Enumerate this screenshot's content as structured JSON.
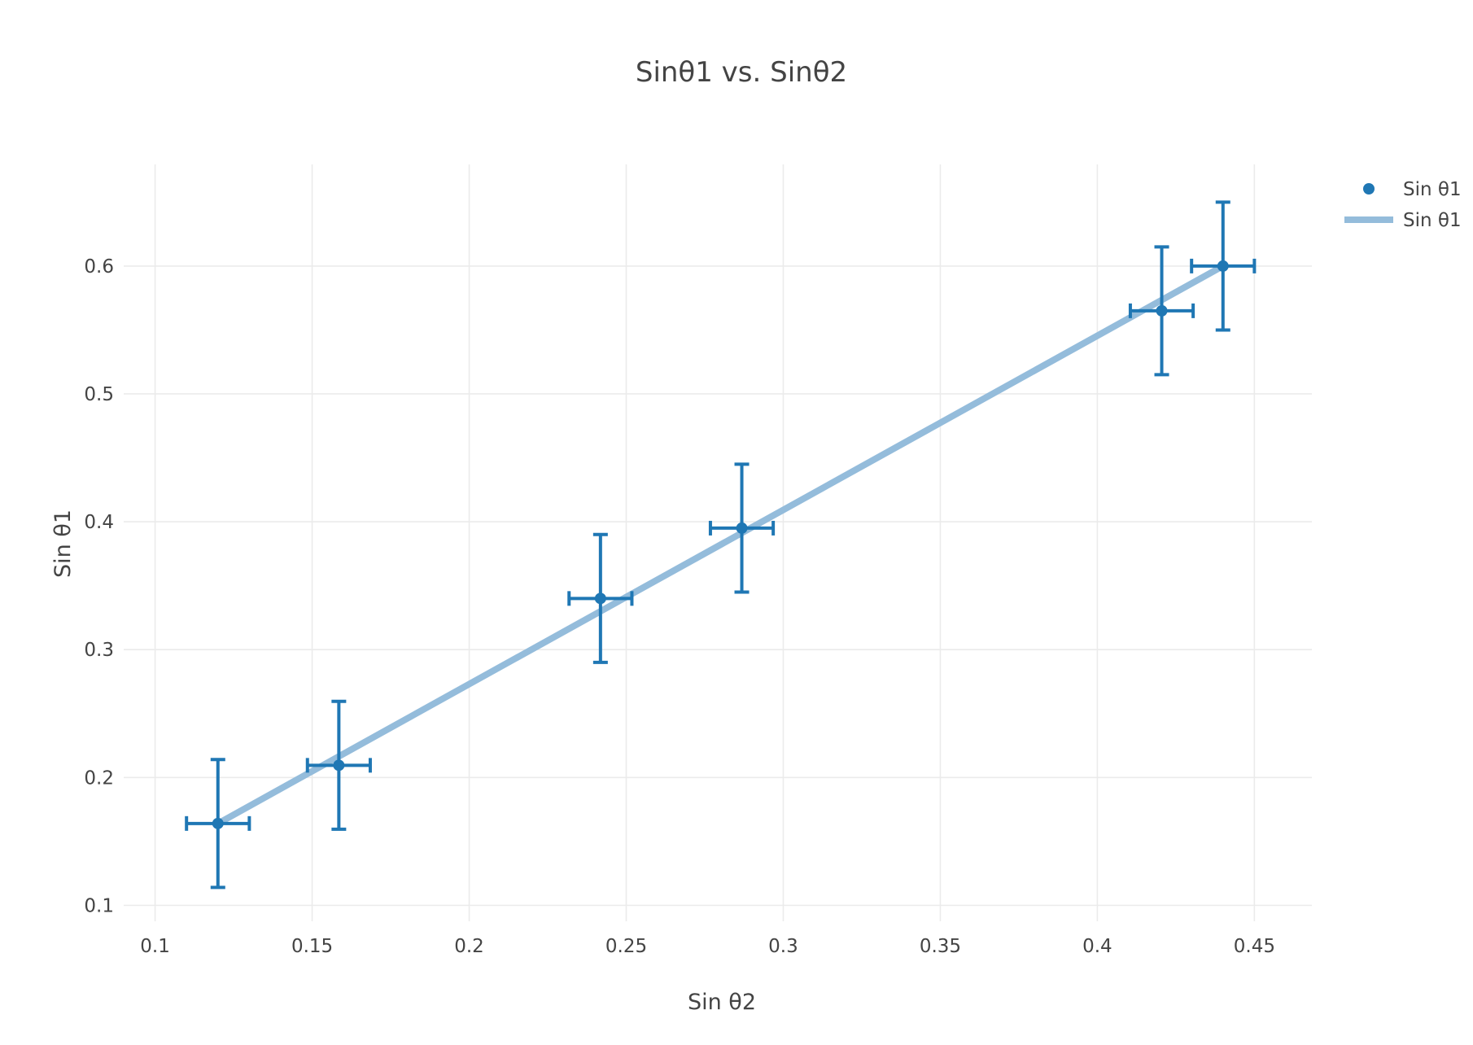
{
  "chart_data": {
    "type": "scatter",
    "title": "Sinθ1 vs. Sinθ2",
    "xlabel": "Sin θ2",
    "ylabel": "Sin θ1",
    "xlim": [
      0.09,
      0.4683
    ],
    "ylim": [
      0.0875,
      0.6795
    ],
    "xticks": [
      0.1,
      0.15,
      0.2,
      0.25,
      0.3,
      0.35,
      0.4,
      0.45
    ],
    "xtick_labels": [
      "0.1",
      "0.15",
      "0.2",
      "0.25",
      "0.3",
      "0.35",
      "0.4",
      "0.45"
    ],
    "yticks": [
      0.1,
      0.2,
      0.3,
      0.4,
      0.5,
      0.6
    ],
    "ytick_labels": [
      "0.1",
      "0.2",
      "0.3",
      "0.4",
      "0.5",
      "0.6"
    ],
    "grid": true,
    "legend_position": "top-right",
    "series": [
      {
        "name": "Sin θ1",
        "mode": "markers",
        "color": "#1f77b4",
        "x": [
          0.12,
          0.1585,
          0.2418,
          0.2868,
          0.4205,
          0.44
        ],
        "y": [
          0.164,
          0.2095,
          0.34,
          0.395,
          0.565,
          0.6
        ],
        "x_error": 0.01,
        "y_error": 0.05
      },
      {
        "name": "Sin θ1",
        "mode": "lines",
        "color": "#94bcdb",
        "x": [
          0.12,
          0.44
        ],
        "y": [
          0.164,
          0.6
        ]
      }
    ]
  }
}
